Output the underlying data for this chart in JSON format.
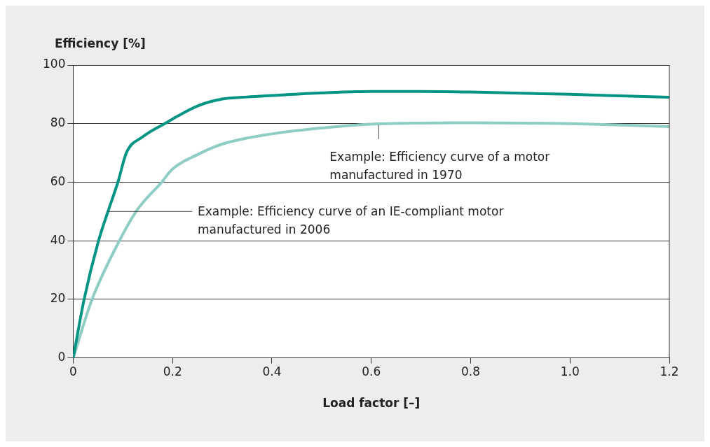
{
  "chart_data": {
    "type": "line",
    "xlabel": "Load factor [–]",
    "ylabel": "Efficiency [%]",
    "xlim": [
      0,
      1.2
    ],
    "ylim": [
      0,
      100
    ],
    "xticks": [
      0,
      0.2,
      0.4,
      0.6,
      0.8,
      {
        "value": 1,
        "label": "1.0"
      },
      1.2
    ],
    "yticks": [
      0,
      20,
      40,
      60,
      80,
      100
    ],
    "grid": "y",
    "marker": "none",
    "line_style": "solid",
    "series": [
      {
        "color": "#009485",
        "x": [
          0,
          0.022,
          0.051,
          0.07,
          0.09,
          0.107,
          0.14,
          0.184,
          0.25,
          0.3,
          0.35,
          0.4,
          0.5,
          0.6,
          0.7,
          0.8,
          0.9,
          1.0,
          1.1,
          1.2
        ],
        "values": [
          0,
          20,
          40,
          50,
          60,
          70,
          75.5,
          80,
          86,
          88.4,
          89.1,
          89.6,
          90.5,
          91,
          91,
          90.8,
          90.4,
          90,
          89.5,
          89
        ]
      },
      {
        "color": "#8ecdc4",
        "x": [
          0,
          0.038,
          0.093,
          0.13,
          0.178,
          0.2,
          0.25,
          0.3,
          0.4,
          0.5,
          0.6,
          0.7,
          0.8,
          0.9,
          1.0,
          1.1,
          1.2
        ],
        "values": [
          0,
          20,
          40,
          50.8,
          60,
          64.5,
          69.4,
          73,
          76.5,
          78.5,
          79.8,
          80.2,
          80.3,
          80.2,
          80,
          79.5,
          79
        ]
      }
    ],
    "annotations": [
      {
        "text": "Example: Efficiency curve of a motor\nmanufactured in 1970",
        "x": 0.615,
        "y": 80
      },
      {
        "text": "Example: Efficiency curve of an IE-compliant motor\nmanufactured in 2006",
        "x": 0.07,
        "y": 50
      }
    ]
  }
}
